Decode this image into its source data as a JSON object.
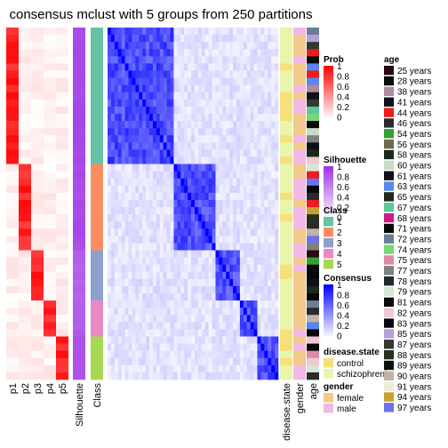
{
  "title": "consensus mclust with 5 groups from 250 partitions",
  "chart_data": {
    "type": "heatmap",
    "n_groups": 5,
    "columns": {
      "prob": [
        "p1",
        "p2",
        "p3",
        "p4",
        "p5"
      ],
      "silhouette": "Silhouette",
      "class": "Class",
      "annotations": [
        "disease.state",
        "gender",
        "age"
      ]
    },
    "groups": [
      {
        "class": "1",
        "samples": 19,
        "silhouette": 0.92
      },
      {
        "class": "2",
        "samples": 12,
        "silhouette": 0.9
      },
      {
        "class": "3",
        "samples": 7,
        "silhouette": 0.8
      },
      {
        "class": "4",
        "samples": 5,
        "silhouette": 0.82
      },
      {
        "class": "5",
        "samples": 6,
        "silhouette": 0.88
      }
    ],
    "legends": {
      "prob": {
        "title": "Prob",
        "ticks": [
          "1",
          "0.8",
          "0.6",
          "0.4",
          "0.2",
          "0"
        ],
        "low": "#ffffff",
        "high": "#ff0000"
      },
      "silhouette": {
        "title": "Silhouette",
        "ticks": [
          "1",
          "0.8",
          "0.6",
          "0.4",
          "0.2",
          "0"
        ],
        "low": "#ffffff",
        "high": "#9e32e6"
      },
      "class": {
        "title": "Class",
        "items": [
          {
            "label": "1",
            "color": "#66c2a5"
          },
          {
            "label": "2",
            "color": "#fc8d62"
          },
          {
            "label": "3",
            "color": "#8da0cb"
          },
          {
            "label": "4",
            "color": "#e78ac3"
          },
          {
            "label": "5",
            "color": "#a6d854"
          }
        ]
      },
      "consensus": {
        "title": "Consensus",
        "ticks": [
          "1",
          "0.8",
          "0.6",
          "0.4",
          "0.2",
          "0"
        ],
        "low": "#ffffff",
        "high": "#0000ff"
      },
      "disease_state": {
        "title": "disease.state",
        "items": [
          {
            "label": "control",
            "color": "#f7e07a"
          },
          {
            "label": "schizophrenia",
            "color": "#e9f5a8"
          }
        ]
      },
      "gender": {
        "title": "gender",
        "items": [
          {
            "label": "female",
            "color": "#f2c98a"
          },
          {
            "label": "male",
            "color": "#f3b8e6"
          }
        ]
      },
      "age": {
        "title": "age",
        "items": [
          {
            "label": "25 years",
            "color": "#2b0a12"
          },
          {
            "label": "28 years",
            "color": "#0d0d0d"
          },
          {
            "label": "38 years",
            "color": "#b08aa0"
          },
          {
            "label": "41 years",
            "color": "#10101a"
          },
          {
            "label": "44 years",
            "color": "#ee1c1c"
          },
          {
            "label": "46 years",
            "color": "#2a2a2a"
          },
          {
            "label": "54 years",
            "color": "#34a034"
          },
          {
            "label": "56 years",
            "color": "#6f6a4c"
          },
          {
            "label": "58 years",
            "color": "#1a2a1a"
          },
          {
            "label": "60 years",
            "color": "#c8dcc8"
          },
          {
            "label": "61 years",
            "color": "#101018"
          },
          {
            "label": "63 years",
            "color": "#5a86ee"
          },
          {
            "label": "65 years",
            "color": "#202a20"
          },
          {
            "label": "67 years",
            "color": "#5ec89a"
          },
          {
            "label": "68 years",
            "color": "#d01a8c"
          },
          {
            "label": "71 years",
            "color": "#080808"
          },
          {
            "label": "72 years",
            "color": "#6a7e96"
          },
          {
            "label": "74 years",
            "color": "#78d678"
          },
          {
            "label": "75 years",
            "color": "#e08aa8"
          },
          {
            "label": "77 years",
            "color": "#808080"
          },
          {
            "label": "78 years",
            "color": "#1e2a30"
          },
          {
            "label": "79 years",
            "color": "#d8e6d8"
          },
          {
            "label": "81 years",
            "color": "#0a0a0a"
          },
          {
            "label": "82 years",
            "color": "#f0c8d0"
          },
          {
            "label": "83 years",
            "color": "#08080c"
          },
          {
            "label": "85 years",
            "color": "#b4a0d8"
          },
          {
            "label": "87 years",
            "color": "#303a30"
          },
          {
            "label": "88 years",
            "color": "#283020"
          },
          {
            "label": "89 years",
            "color": "#0a100a"
          },
          {
            "label": "90 years",
            "color": "#c0b4a8"
          },
          {
            "label": "91 years",
            "color": "#ececd8"
          },
          {
            "label": "94 years",
            "color": "#c8a030"
          },
          {
            "label": "97 years",
            "color": "#7070e8"
          }
        ]
      }
    }
  }
}
